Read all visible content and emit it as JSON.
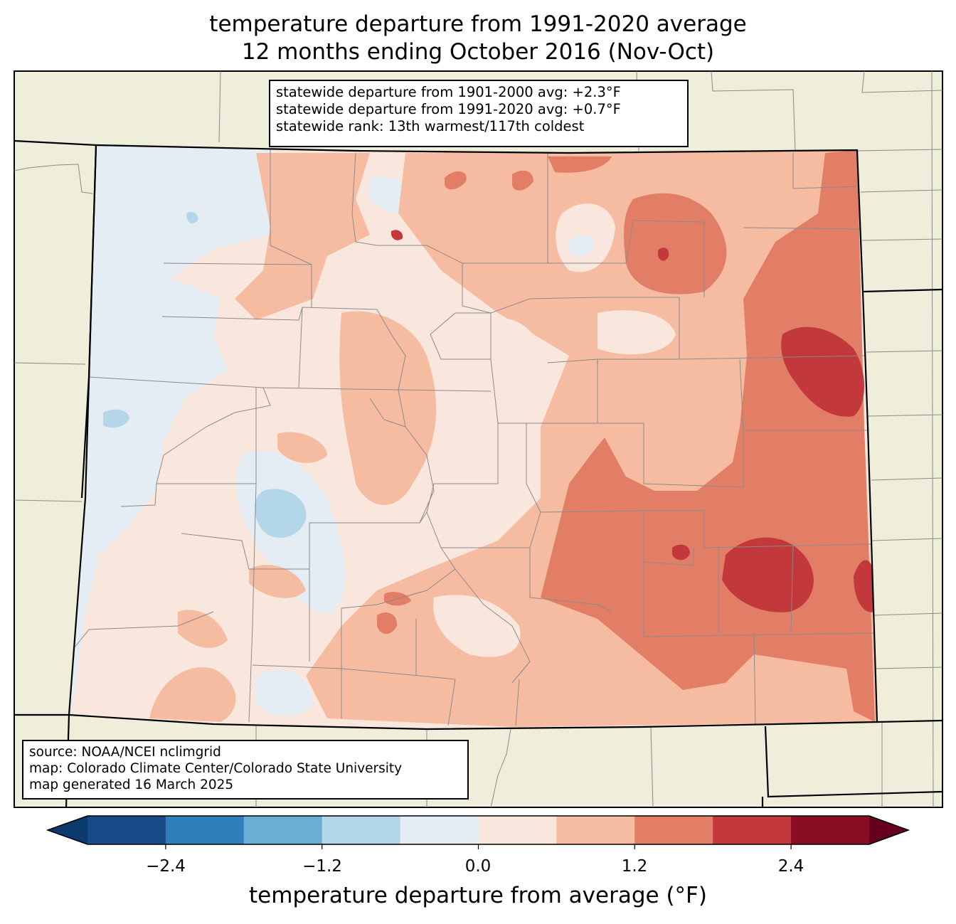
{
  "title_line1": "temperature departure from 1991-2020 average",
  "title_line2": "12 months ending October 2016 (Nov-Oct)",
  "stats": {
    "line1": "statewide departure from 1901-2000 avg: +2.3°F",
    "line2": "statewide departure from 1991-2020 avg: +0.7°F",
    "line3": "statewide rank: 13th warmest/117th coldest"
  },
  "source": {
    "line1": "source: NOAA/NCEI nclimgrid",
    "line2": "map: Colorado Climate Center/Colorado State University",
    "line3": "map generated 16 March 2025"
  },
  "colorbar": {
    "label": "temperature departure from average (°F)",
    "ticks": [
      "−2.4",
      "−1.2",
      "0.0",
      "1.2",
      "2.4"
    ],
    "levels": [
      -3.0,
      -2.4,
      -1.8,
      -1.2,
      -0.6,
      0.0,
      0.6,
      1.2,
      1.8,
      2.4,
      3.0
    ],
    "colors": [
      "#0b3a6e",
      "#174a86",
      "#307fba",
      "#6aaed3",
      "#b3d6e8",
      "#e4ecf4",
      "#f9e7de",
      "#f6bca2",
      "#e27e65",
      "#c2383b",
      "#8a0d26",
      "#67001f"
    ]
  },
  "map_colors": {
    "land_outside": "#efeedb",
    "border": "#000000",
    "county_lines": "#8a8a8a"
  }
}
